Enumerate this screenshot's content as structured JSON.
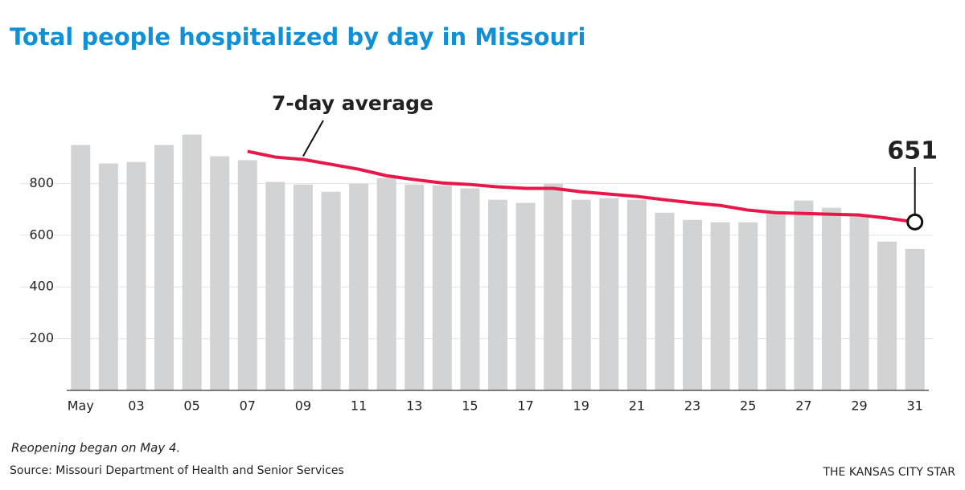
{
  "chart_data": {
    "type": "bar-line",
    "title": "Total people hospitalized by day in Missouri",
    "categories": [
      "May",
      null,
      "03",
      null,
      "05",
      null,
      "07",
      null,
      "09",
      null,
      "11",
      null,
      "13",
      null,
      "15",
      null,
      "17",
      null,
      "19",
      null,
      "21",
      null,
      "23",
      null,
      "25",
      null,
      "27",
      null,
      "29",
      null,
      "31"
    ],
    "series": [
      {
        "type": "bar",
        "color": "#d1d3d4",
        "values": [
          949,
          877,
          883,
          949,
          989,
          905,
          890,
          806,
          796,
          768,
          799,
          821,
          796,
          793,
          781,
          737,
          725,
          799,
          737,
          743,
          737,
          687,
          659,
          650,
          650,
          684,
          734,
          706,
          672,
          575,
          547
        ]
      },
      {
        "type": "line",
        "name": "7-day average",
        "color": "#e8174a",
        "values": [
          null,
          null,
          null,
          null,
          null,
          null,
          924,
          902,
          893,
          874,
          855,
          830,
          815,
          802,
          796,
          787,
          781,
          781,
          768,
          759,
          750,
          737,
          725,
          715,
          697,
          687,
          684,
          681,
          678,
          666,
          651
        ]
      }
    ],
    "ylim": [
      0,
      1000
    ],
    "yticks": [
      200,
      400,
      600,
      800
    ],
    "grid": true,
    "note": "Reopening began on May 4.",
    "source": "Source: Missouri Department of Health and Senior Services",
    "credit": "THE KANSAS CITY STAR"
  }
}
